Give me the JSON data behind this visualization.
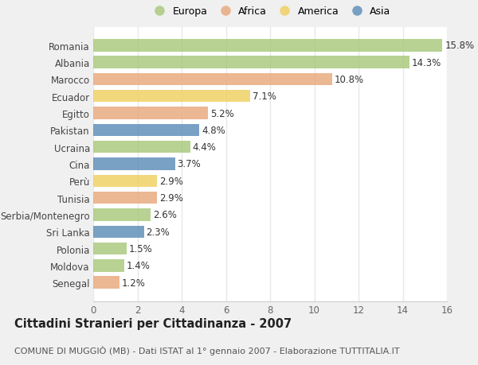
{
  "countries": [
    "Romania",
    "Albania",
    "Marocco",
    "Ecuador",
    "Egitto",
    "Pakistan",
    "Ucraina",
    "Cina",
    "Perù",
    "Tunisia",
    "Serbia/Montenegro",
    "Sri Lanka",
    "Polonia",
    "Moldova",
    "Senegal"
  ],
  "values": [
    15.8,
    14.3,
    10.8,
    7.1,
    5.2,
    4.8,
    4.4,
    3.7,
    2.9,
    2.9,
    2.6,
    2.3,
    1.5,
    1.4,
    1.2
  ],
  "continents": [
    "Europa",
    "Europa",
    "Africa",
    "America",
    "Africa",
    "Asia",
    "Europa",
    "Asia",
    "America",
    "Africa",
    "Europa",
    "Asia",
    "Europa",
    "Europa",
    "Africa"
  ],
  "colors": {
    "Europa": "#a8c87a",
    "Africa": "#e8a87c",
    "America": "#f0d060",
    "Asia": "#5b8db8"
  },
  "legend_order": [
    "Europa",
    "Africa",
    "America",
    "Asia"
  ],
  "title": "Cittadini Stranieri per Cittadinanza - 2007",
  "subtitle": "COMUNE DI MUGGIÒ (MB) - Dati ISTAT al 1° gennaio 2007 - Elaborazione TUTTITALIA.IT",
  "xlim": [
    0,
    16
  ],
  "xticks": [
    0,
    2,
    4,
    6,
    8,
    10,
    12,
    14,
    16
  ],
  "background_color": "#f0f0f0",
  "plot_bg_color": "#ffffff",
  "grid_color": "#e8e8e8",
  "label_fontsize": 8.5,
  "value_fontsize": 8.5,
  "title_fontsize": 10.5,
  "subtitle_fontsize": 8.0,
  "bar_height": 0.72,
  "bar_alpha": 0.82
}
